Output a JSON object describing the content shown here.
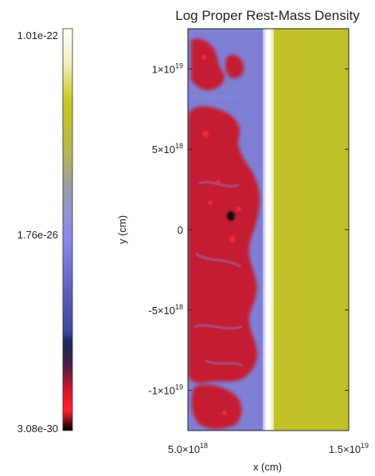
{
  "chart_data": {
    "type": "heatmap",
    "title": "Log Proper Rest-Mass Density",
    "xlabel": "x (cm)",
    "ylabel": "y (cm)",
    "xlim": [
      5e+18,
      1.5e+19
    ],
    "ylim": [
      -1.25e+19,
      1.25e+19
    ],
    "x_ticks": [
      {
        "value": 5e+18,
        "mant": "5.0×10",
        "exp": "18"
      },
      {
        "value": 1.5e+19,
        "mant": "1.5×10",
        "exp": "19"
      }
    ],
    "y_ticks": [
      {
        "value": 1e+19,
        "mant": "1×10",
        "exp": "19"
      },
      {
        "value": 5e+18,
        "mant": "5×10",
        "exp": "18"
      },
      {
        "value": 0,
        "mant": "0",
        "exp": ""
      },
      {
        "value": -5e+18,
        "mant": "-5×10",
        "exp": "18"
      },
      {
        "value": -1e+19,
        "mant": "-1×10",
        "exp": "19"
      }
    ],
    "colorbar": {
      "scale": "log",
      "max_label": "1.01e-22",
      "mid_label": "1.76e-26",
      "min_label": "3.08e-30",
      "stops": [
        {
          "pos": 0.0,
          "color": "#fffff4"
        },
        {
          "pos": 0.08,
          "color": "#f0f0c8"
        },
        {
          "pos": 0.18,
          "color": "#c8c81e"
        },
        {
          "pos": 0.3,
          "color": "#b8b84e"
        },
        {
          "pos": 0.4,
          "color": "#9a9aae"
        },
        {
          "pos": 0.52,
          "color": "#8a8af0"
        },
        {
          "pos": 0.66,
          "color": "#5c5cbc"
        },
        {
          "pos": 0.75,
          "color": "#3c4ca0"
        },
        {
          "pos": 0.78,
          "color": "#1a2a5a"
        },
        {
          "pos": 0.84,
          "color": "#4c2044"
        },
        {
          "pos": 0.9,
          "color": "#dc1428"
        },
        {
          "pos": 0.95,
          "color": "#ff2030"
        },
        {
          "pos": 1.0,
          "color": "#000000"
        }
      ]
    },
    "field_colors": {
      "ambient_medium": "#c2c12a",
      "cocoon": "#7f80d4",
      "dense_jet": "#c41c30",
      "shock_front": "#ffffff",
      "core": "#1a0a0a"
    }
  }
}
